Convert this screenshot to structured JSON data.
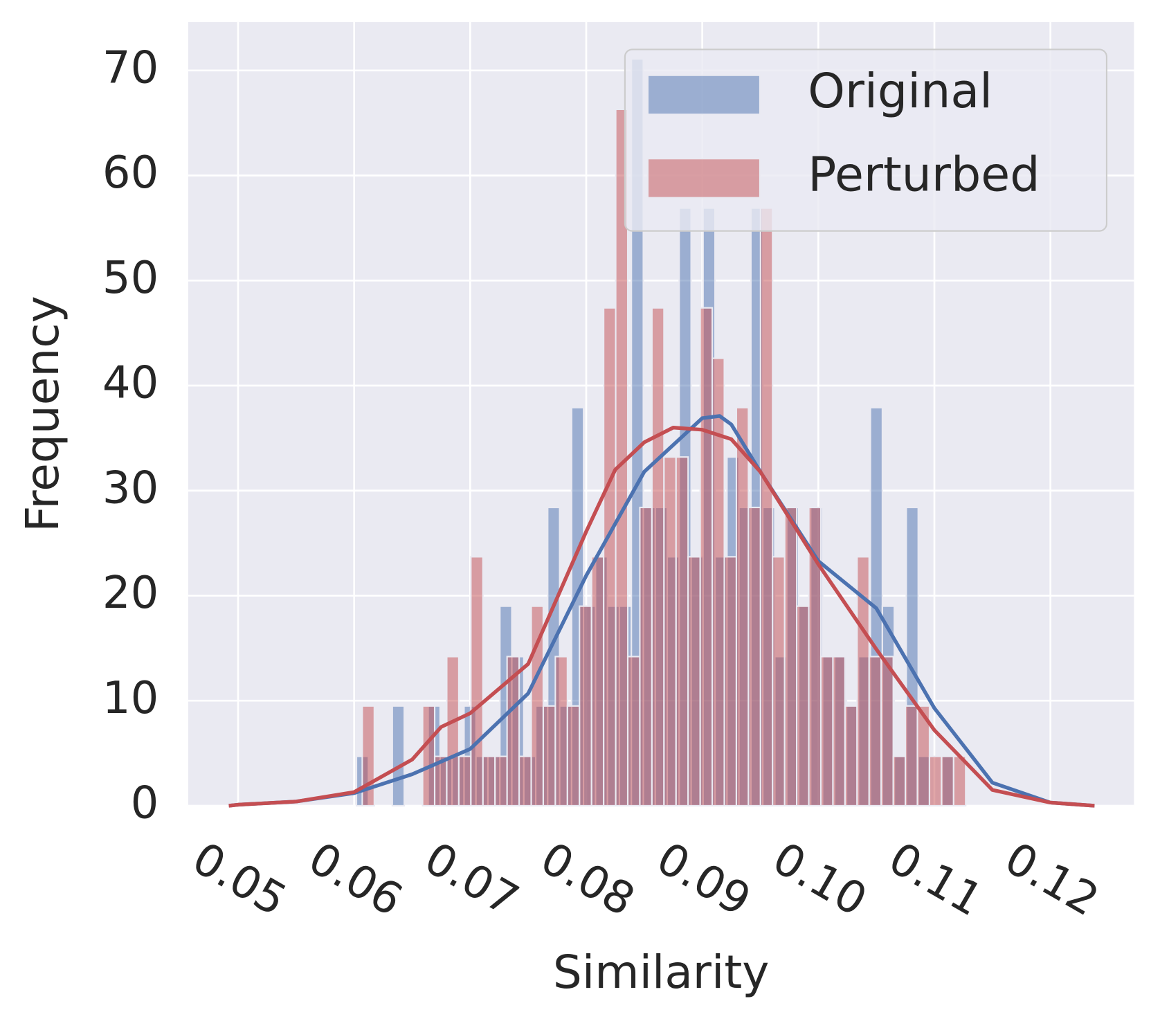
{
  "chart_data": {
    "type": "histogram",
    "x_label": "Similarity",
    "y_label": "Frequency",
    "xlim": [
      0.0457,
      0.1272
    ],
    "ylim": [
      0,
      74.6
    ],
    "xticks": [
      0.05,
      0.06,
      0.07,
      0.08,
      0.09,
      {
        "value": 0.1,
        "label": "0.10"
      },
      0.11,
      0.12
    ],
    "yticks": [
      0,
      10,
      20,
      30,
      40,
      50,
      60,
      70
    ],
    "grid": true,
    "legend": "upper right",
    "series": [
      {
        "name": "Original",
        "color": "#4c72b0",
        "bins": [
          0.0602,
          0.06123,
          0.06226,
          0.06329,
          0.06432,
          0.06535,
          0.06638,
          0.06741,
          0.06844,
          0.06947,
          0.0705,
          0.07153,
          0.07256,
          0.07359,
          0.07462,
          0.07565,
          0.07668,
          0.07771,
          0.07874,
          0.07977,
          0.0808,
          0.08183,
          0.08286,
          0.08389,
          0.08492,
          0.08595,
          0.08698,
          0.08801,
          0.08904,
          0.09007,
          0.0911,
          0.09213,
          0.09316,
          0.09419,
          0.09522,
          0.09625,
          0.09728,
          0.09831,
          0.09934,
          0.10037,
          0.1014,
          0.10243,
          0.10346,
          0.10449,
          0.10552,
          0.10655,
          0.10758,
          0.10861,
          0.10964,
          0.11067,
          0.1117
        ],
        "values": [
          4.7,
          0,
          0,
          9.5,
          0,
          0,
          9.5,
          4.7,
          4.7,
          9.5,
          4.7,
          4.7,
          19.0,
          14.2,
          4.7,
          9.5,
          28.4,
          9.5,
          37.9,
          19.0,
          23.7,
          19.0,
          19.0,
          71.1,
          28.4,
          28.4,
          23.7,
          56.9,
          23.7,
          56.9,
          23.7,
          33.2,
          28.4,
          56.9,
          28.4,
          14.2,
          28.4,
          19.0,
          28.4,
          14.2,
          14.2,
          9.5,
          14.2,
          37.9,
          19.0,
          4.7,
          28.4,
          4.7,
          0,
          4.7
        ],
        "kde": {
          "x": [
            0.0492,
            0.05,
            0.055,
            0.06,
            0.065,
            0.0675,
            0.07,
            0.075,
            0.08,
            0.085,
            0.09,
            0.0915,
            0.0925,
            0.095,
            0.1,
            0.105,
            0.11,
            0.115,
            0.12,
            0.1238
          ],
          "values": [
            0,
            0.1,
            0.4,
            1.2,
            3.0,
            4.2,
            5.4,
            10.7,
            21.9,
            31.8,
            36.9,
            37.1,
            36.3,
            31.8,
            23.3,
            18.8,
            9.3,
            2.2,
            0.3,
            0
          ]
        }
      },
      {
        "name": "Perturbed",
        "color": "#c44e52",
        "bins": [
          0.0607,
          0.06174,
          0.06278,
          0.06382,
          0.06486,
          0.0659,
          0.06694,
          0.06798,
          0.06902,
          0.07006,
          0.0711,
          0.07214,
          0.07318,
          0.07422,
          0.07526,
          0.0763,
          0.07734,
          0.07838,
          0.07942,
          0.08046,
          0.0815,
          0.08254,
          0.08358,
          0.08462,
          0.08566,
          0.0867,
          0.08774,
          0.08878,
          0.08982,
          0.09086,
          0.0919,
          0.09294,
          0.09398,
          0.09502,
          0.09606,
          0.0971,
          0.09814,
          0.09918,
          0.10022,
          0.10126,
          0.1023,
          0.10334,
          0.10438,
          0.10542,
          0.10646,
          0.1075,
          0.10854,
          0.10958,
          0.11062,
          0.11166,
          0.1127
        ],
        "values": [
          9.5,
          0,
          0,
          0,
          0,
          9.5,
          4.7,
          14.2,
          4.7,
          23.7,
          4.7,
          4.7,
          14.2,
          4.7,
          19.0,
          9.5,
          14.2,
          9.5,
          19.0,
          23.7,
          47.4,
          66.3,
          14.2,
          28.4,
          47.4,
          33.2,
          33.2,
          23.7,
          47.4,
          42.6,
          23.7,
          37.9,
          28.4,
          56.9,
          23.7,
          28.4,
          19.0,
          28.4,
          14.2,
          14.2,
          9.5,
          23.7,
          14.2,
          14.2,
          4.7,
          9.5,
          9.5,
          4.7,
          4.7,
          4.7
        ],
        "kde": {
          "x": [
            0.0492,
            0.05,
            0.055,
            0.06,
            0.065,
            0.0675,
            0.07,
            0.075,
            0.08,
            0.0825,
            0.085,
            0.0875,
            0.09,
            0.0925,
            0.095,
            0.1,
            0.105,
            0.11,
            0.115,
            0.12,
            0.1238
          ],
          "values": [
            0,
            0.1,
            0.4,
            1.3,
            4.4,
            7.5,
            8.8,
            13.5,
            26.1,
            32.0,
            34.6,
            36.0,
            35.8,
            34.9,
            31.8,
            23.0,
            14.9,
            7.2,
            1.5,
            0.3,
            0
          ]
        }
      }
    ]
  }
}
